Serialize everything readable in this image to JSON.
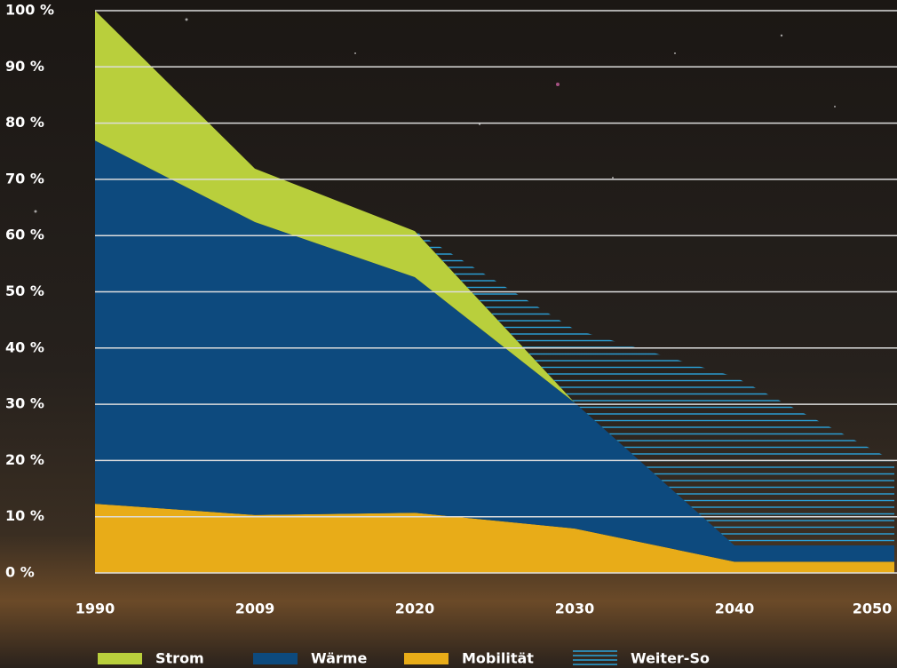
{
  "chart_data": {
    "type": "stacked_area",
    "categories": [
      "1990",
      "2009",
      "2020",
      "2030",
      "2040",
      "2050"
    ],
    "series": [
      {
        "name": "Strom",
        "color": "#b9cf3c",
        "values": [
          23.1,
          9.5,
          8.2,
          0,
          0,
          0
        ]
      },
      {
        "name": "Wärme",
        "color": "#0d4a7e",
        "values": [
          64.6,
          52.1,
          41.9,
          22.4,
          2.9,
          2.9
        ]
      },
      {
        "name": "Mobilität",
        "color": "#e8ac18",
        "values": [
          12.3,
          10.3,
          10.7,
          7.9,
          2.0,
          2.0
        ]
      },
      {
        "name": "Weiter-So",
        "color": "#2aa3dc",
        "hatched": true,
        "values": [
          null,
          null,
          0,
          13,
          30,
          15
        ]
      }
    ],
    "ylim": [
      0,
      100
    ],
    "yticks": [
      {
        "value": 0,
        "label": "0 %"
      },
      {
        "value": 10,
        "label": "10 %"
      },
      {
        "value": 20,
        "label": "20 %"
      },
      {
        "value": 30,
        "label": "30 %"
      },
      {
        "value": 40,
        "label": "40 %"
      },
      {
        "value": 50,
        "label": "50 %"
      },
      {
        "value": 60,
        "label": "60 %"
      },
      {
        "value": 70,
        "label": "70 %"
      },
      {
        "value": 80,
        "label": "80 %"
      },
      {
        "value": 90,
        "label": "90 %"
      },
      {
        "value": 100,
        "label": "100 %"
      }
    ],
    "grid": true
  }
}
